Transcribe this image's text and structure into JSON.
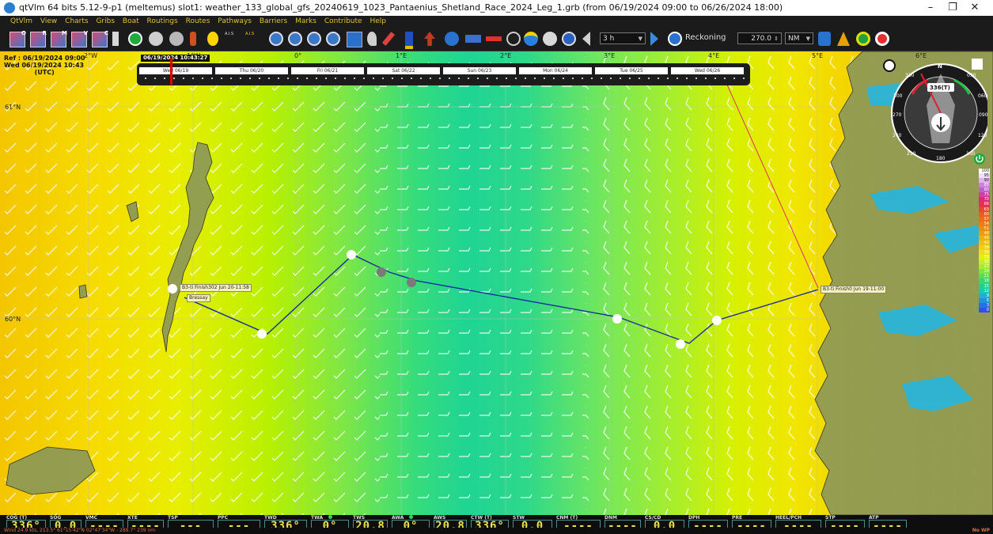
{
  "window": {
    "title": "qtVlm 64 bits 5.12-9-p1 (meltemus) slot1: weather_133_global_gfs_20240619_1023_Pantaenius_Shetland_Race_2024_Leg_1.grb (from 06/19/2024 09:00 to 06/26/2024 18:00)",
    "minimize": "–",
    "restore": "❐",
    "close": "✕"
  },
  "menu": [
    "QtVlm",
    "View",
    "Charts",
    "Gribs",
    "Boat",
    "Routings",
    "Routes",
    "Pathways",
    "Barriers",
    "Marks",
    "Contribute",
    "Help"
  ],
  "toolbar": {
    "grib_letters": [
      "O",
      "R",
      "M",
      "V",
      "C"
    ],
    "ais_labels": [
      "A.I.S",
      "A.I.S"
    ],
    "step_value": "3 h",
    "mode_label": "Reckoning",
    "heading_value": "270.0",
    "unit_value": "NM"
  },
  "map": {
    "ref_lines": [
      "Ref : 06/19/2024 09:00",
      "Wed 06/19/2024 10:43",
      "(UTC)"
    ],
    "longitudes": [
      "2°W",
      "1°W",
      "0°",
      "1°E",
      "2°E",
      "3°E",
      "4°E",
      "5°E",
      "6°E"
    ],
    "latitudes": [
      "61°N",
      "60°N"
    ],
    "waypoint_labels": {
      "finish_a": "B3-ti Finish302 Jun 20-11:58",
      "bressay": "Bressay",
      "finish_b": "B3-ti Finish0 Jun 19-11:00"
    }
  },
  "timeline": {
    "cursor_label": "06/19/2024 10:43:27",
    "days": [
      "Wed 06/19",
      "Thu 06/20",
      "Fri 06/21",
      "Sat 06/22",
      "Sun 06/23",
      "Mon 06/24",
      "Tue 06/25",
      "Wed 06/26"
    ]
  },
  "compass": {
    "heading": "336(T)",
    "marks": [
      "N",
      "030",
      "060",
      "090",
      "120",
      "150",
      "180",
      "210",
      "240",
      "270",
      "300",
      "330"
    ]
  },
  "wind_scale": [
    "100",
    "95",
    "90",
    "85",
    "80",
    "75",
    "70",
    "66",
    "63",
    "60",
    "57",
    "54",
    "51",
    "48",
    "45",
    "42",
    "39",
    "36",
    "33",
    "30",
    "27",
    "24",
    "21",
    "18",
    "15",
    "12",
    "9",
    "6",
    "3",
    "0"
  ],
  "wind_scale_colors": [
    "#ffffff",
    "#f0e0ff",
    "#e0b0f0",
    "#d080e0",
    "#c060d0",
    "#d040a0",
    "#e02878",
    "#e83050",
    "#e84830",
    "#f05a20",
    "#f06a18",
    "#f07a10",
    "#f08a10",
    "#f09c10",
    "#f0ae10",
    "#f0c010",
    "#f0d010",
    "#f0e010",
    "#e0f010",
    "#c8f020",
    "#a8ec30",
    "#80e440",
    "#58dc50",
    "#38d870",
    "#20d090",
    "#18c8b0",
    "#20b0d0",
    "#2090e0",
    "#2870e8",
    "#3050f0"
  ],
  "instruments": [
    {
      "label": "COG (T)",
      "value": "336°"
    },
    {
      "label": "SOG",
      "value": "0.0"
    },
    {
      "label": "VMC",
      "value": "----"
    },
    {
      "label": "XTE",
      "value": "----"
    },
    {
      "label": "TSP",
      "value": "---"
    },
    {
      "label": "PPC",
      "value": "---"
    },
    {
      "label": "TWD",
      "value": "336°"
    },
    {
      "label": "TWA",
      "value": "0°"
    },
    {
      "label": "TWS",
      "value": "20.8"
    },
    {
      "label": "AWA",
      "value": "0°"
    },
    {
      "label": "AWS",
      "value": "20.8"
    },
    {
      "label": "CTW (T)",
      "value": "336°"
    },
    {
      "label": "STW",
      "value": "0.0"
    },
    {
      "label": "CNM (T)",
      "value": "----"
    },
    {
      "label": "DNM",
      "value": "----"
    },
    {
      "label": "CS/CD",
      "value": "0.0"
    },
    {
      "label": "DPH",
      "value": "----"
    },
    {
      "label": "PRE",
      "value": "----"
    },
    {
      "label": "HEEL/PCH",
      "value": "----"
    },
    {
      "label": "STP",
      "value": "----"
    },
    {
      "label": "ATP",
      "value": "----"
    }
  ],
  "status": {
    "left": "Wind 24.9 kts, 213.5° 61°15'42\"N 02°47'34\"W - 289.7° 239 nm",
    "right": "No WP"
  }
}
